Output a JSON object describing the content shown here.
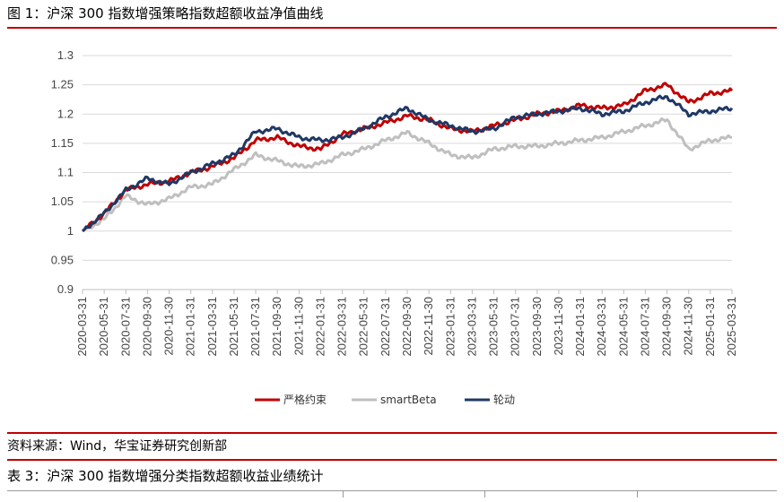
{
  "figure": {
    "caption": "图 1：沪深 300 指数增强策略指数超额收益净值曲线",
    "source": "资料来源：Wind，华宝证券研究创新部",
    "next_table_caption": "表 3：沪深 300 指数增强分类指数超额收益业绩统计"
  },
  "colors": {
    "rule": "#c00000",
    "grid": "#d9d9d9"
  },
  "chart_data": {
    "type": "line",
    "title": "",
    "xlabel": "",
    "ylabel": "",
    "ylim": [
      0.9,
      1.3
    ],
    "yticks": [
      "1.3",
      "1.25",
      "1.2",
      "1.15",
      "1.1",
      "1.05",
      "1",
      "0.95",
      "0.9"
    ],
    "grid": true,
    "legend_position": "bottom",
    "x": [
      "2020-03-31",
      "2020-05-31",
      "2020-07-31",
      "2020-09-30",
      "2020-11-30",
      "2021-01-31",
      "2021-03-31",
      "2021-05-31",
      "2021-07-31",
      "2021-09-30",
      "2021-11-30",
      "2022-01-31",
      "2022-03-31",
      "2022-05-31",
      "2022-07-31",
      "2022-09-30",
      "2022-11-30",
      "2023-01-31",
      "2023-03-31",
      "2023-05-31",
      "2023-07-31",
      "2023-09-30",
      "2023-11-30",
      "2024-01-31",
      "2024-03-31",
      "2024-05-31",
      "2024-07-31",
      "2024-09-30",
      "2024-11-30",
      "2025-01-31",
      "2025-03-31"
    ],
    "series": [
      {
        "name": "严格约束",
        "color": "#c00000",
        "values": [
          1.0,
          1.03,
          1.07,
          1.08,
          1.085,
          1.1,
          1.11,
          1.125,
          1.155,
          1.16,
          1.145,
          1.14,
          1.165,
          1.175,
          1.185,
          1.197,
          1.19,
          1.175,
          1.17,
          1.18,
          1.19,
          1.2,
          1.205,
          1.215,
          1.21,
          1.215,
          1.24,
          1.25,
          1.22,
          1.235,
          1.24
        ]
      },
      {
        "name": "smartBeta",
        "color": "#bfbfbf",
        "values": [
          1.0,
          1.02,
          1.06,
          1.045,
          1.055,
          1.075,
          1.08,
          1.105,
          1.13,
          1.12,
          1.11,
          1.115,
          1.13,
          1.14,
          1.155,
          1.168,
          1.15,
          1.13,
          1.125,
          1.14,
          1.145,
          1.145,
          1.15,
          1.155,
          1.16,
          1.17,
          1.18,
          1.19,
          1.14,
          1.155,
          1.16
        ]
      },
      {
        "name": "轮动",
        "color": "#1f3864",
        "values": [
          1.0,
          1.03,
          1.07,
          1.09,
          1.08,
          1.1,
          1.115,
          1.13,
          1.17,
          1.175,
          1.16,
          1.155,
          1.16,
          1.175,
          1.195,
          1.21,
          1.19,
          1.18,
          1.17,
          1.175,
          1.195,
          1.2,
          1.205,
          1.21,
          1.2,
          1.205,
          1.22,
          1.23,
          1.2,
          1.205,
          1.21
        ]
      }
    ]
  }
}
